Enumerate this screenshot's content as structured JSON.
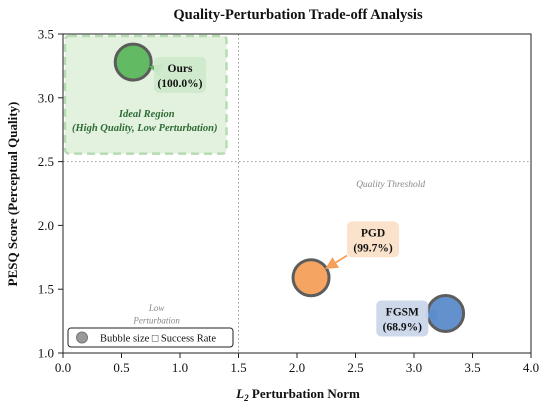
{
  "chart_data": {
    "type": "scatter",
    "title": "Quality-Perturbation Trade-off Analysis",
    "xlabel_main": "L",
    "xlabel_sub": "2",
    "xlabel_rest": " Perturbation Norm",
    "ylabel": "PESQ Score (Perceptual Quality)",
    "xlim": [
      0.0,
      4.0
    ],
    "ylim": [
      1.0,
      3.5
    ],
    "xticks": [
      "0.0",
      "0.5",
      "1.0",
      "1.5",
      "2.0",
      "2.5",
      "3.0",
      "3.5",
      "4.0"
    ],
    "yticks": [
      "1.0",
      "1.5",
      "2.0",
      "2.5",
      "3.0",
      "3.5"
    ],
    "grid": false,
    "points": [
      {
        "name": "Ours",
        "label": "(100.0%)",
        "x": 0.6,
        "y": 3.28,
        "success_rate": 100.0,
        "color": "#5cb85c",
        "box_color": "#cfe9cc",
        "label_x": 1.0,
        "label_y": 3.18
      },
      {
        "name": "PGD",
        "label": "(99.7%)",
        "x": 2.12,
        "y": 1.59,
        "success_rate": 99.7,
        "color": "#f5a05a",
        "box_color": "#fbe1c8",
        "label_x": 2.65,
        "label_y": 1.89
      },
      {
        "name": "FGSM",
        "label": "(68.9%)",
        "x": 3.27,
        "y": 1.31,
        "success_rate": 68.9,
        "color": "#5b8ccc",
        "box_color": "#cbd6ea",
        "label_x": 2.9,
        "label_y": 1.27
      }
    ],
    "threshold_x": 1.5,
    "threshold_y": 2.5,
    "ideal_region": {
      "x0": 0.0,
      "x1": 1.5,
      "y0": 2.5,
      "y1": 3.5,
      "title": "Ideal Region",
      "subtitle": "(High Quality, Low Perturbation)"
    },
    "annotations": {
      "quality_threshold": "Quality Threshold",
      "low_perturbation_1": "Low",
      "low_perturbation_2": "Perturbation"
    },
    "legend": {
      "position": "lower-left",
      "label": "Bubble size □ Success Rate"
    }
  }
}
